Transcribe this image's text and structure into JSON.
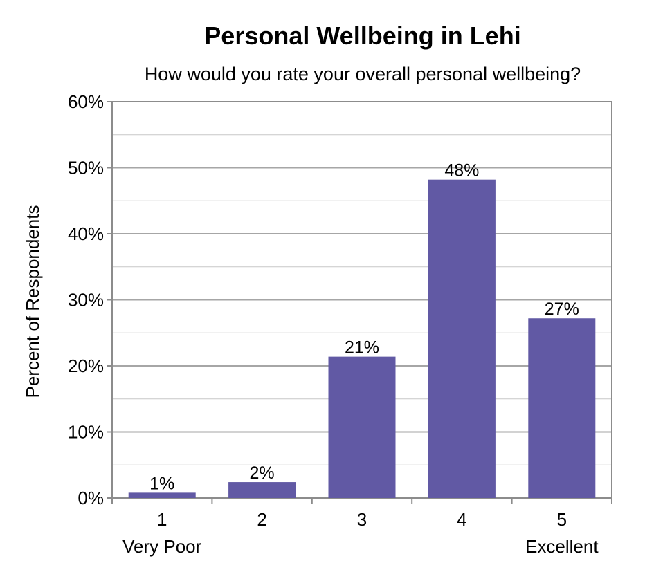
{
  "chart_data": {
    "type": "bar",
    "title": "Personal Wellbeing in Lehi",
    "subtitle": "How would you rate your overall personal wellbeing?",
    "ylabel": "Percent of Respondents",
    "xlabel": "",
    "categories": [
      "1",
      "2",
      "3",
      "4",
      "5"
    ],
    "category_sublabels": [
      "Very Poor",
      "",
      "",
      "",
      "Excellent"
    ],
    "values": [
      0.8,
      2.4,
      21.4,
      48.2,
      27.2
    ],
    "data_labels": [
      "1%",
      "2%",
      "21%",
      "48%",
      "27%"
    ],
    "ylim": [
      0,
      60
    ],
    "yticks": [
      0,
      10,
      20,
      30,
      40,
      50,
      60
    ],
    "ytick_labels": [
      "0%",
      "10%",
      "20%",
      "30%",
      "40%",
      "50%",
      "60%"
    ],
    "grid": true,
    "legend": "none",
    "colors": {
      "bar": "#6159a4",
      "grid": "#c7c7c7",
      "frame": "#8c8c8c"
    }
  }
}
